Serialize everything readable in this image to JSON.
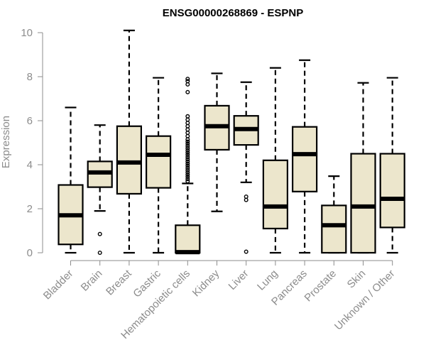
{
  "chart_data": {
    "type": "boxplot",
    "title": "ENSG00000268869 - ESPNP",
    "xlabel": "",
    "ylabel": "Expression",
    "ylim": [
      0,
      10
    ],
    "yticks": [
      0,
      2,
      4,
      6,
      8,
      10
    ],
    "box_color": "#ece6cc",
    "grid": false,
    "categories": [
      "Bladder",
      "Brain",
      "Breast",
      "Gastric",
      "Hematopoietic cells",
      "Kidney",
      "Liver",
      "Lung",
      "Pancreas",
      "Prostate",
      "Skin",
      "Unknown / Other"
    ],
    "boxes": [
      {
        "min": 0.0,
        "q1": 0.38,
        "median": 1.7,
        "q3": 3.08,
        "max": 6.6,
        "outliers": []
      },
      {
        "min": 1.9,
        "q1": 2.98,
        "median": 3.65,
        "q3": 4.15,
        "max": 5.8,
        "outliers": [
          0.85,
          0.0
        ]
      },
      {
        "min": 0.0,
        "q1": 2.68,
        "median": 4.1,
        "q3": 5.75,
        "max": 10.1,
        "outliers": []
      },
      {
        "min": 0.0,
        "q1": 2.95,
        "median": 4.45,
        "q3": 5.3,
        "max": 7.95,
        "outliers": []
      },
      {
        "min": 0.0,
        "q1": 0.0,
        "median": 0.03,
        "q3": 1.25,
        "max": 3.15,
        "outliers": [
          3.25,
          3.35,
          3.45,
          3.55,
          3.65,
          3.75,
          3.85,
          3.95,
          4.05,
          4.15,
          4.25,
          4.35,
          4.45,
          4.55,
          4.65,
          4.75,
          4.85,
          4.95,
          5.05,
          5.15,
          5.3,
          5.45,
          5.6,
          5.75,
          5.9,
          6.05,
          6.2,
          7.3,
          7.65,
          7.8,
          7.9
        ]
      },
      {
        "min": 1.88,
        "q1": 4.68,
        "median": 5.75,
        "q3": 6.68,
        "max": 8.15,
        "outliers": []
      },
      {
        "min": 3.2,
        "q1": 4.9,
        "median": 5.62,
        "q3": 6.22,
        "max": 7.75,
        "outliers": [
          2.55,
          2.4,
          0.05
        ]
      },
      {
        "min": 0.0,
        "q1": 1.1,
        "median": 2.1,
        "q3": 4.2,
        "max": 8.4,
        "outliers": []
      },
      {
        "min": 0.0,
        "q1": 2.78,
        "median": 4.48,
        "q3": 5.72,
        "max": 8.75,
        "outliers": []
      },
      {
        "min": 0.0,
        "q1": 0.0,
        "median": 1.25,
        "q3": 2.15,
        "max": 3.48,
        "outliers": []
      },
      {
        "min": 0.0,
        "q1": 0.0,
        "median": 2.1,
        "q3": 4.5,
        "max": 7.72,
        "outliers": []
      },
      {
        "min": 0.0,
        "q1": 1.15,
        "median": 2.45,
        "q3": 4.5,
        "max": 7.95,
        "outliers": []
      }
    ]
  }
}
